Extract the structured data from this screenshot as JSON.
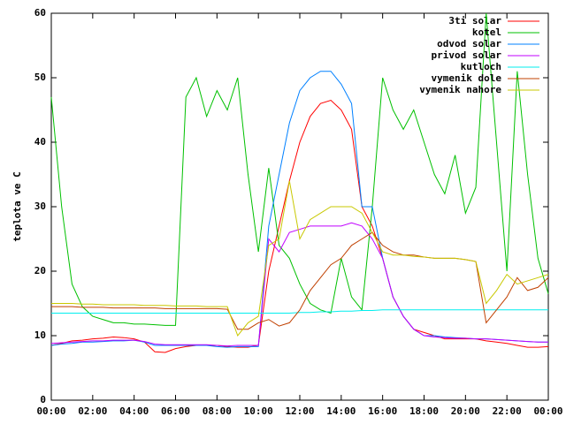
{
  "chart_data": {
    "type": "line",
    "ylabel": "teplota ve C",
    "x": [
      0,
      0.5,
      1,
      1.5,
      2,
      2.5,
      3,
      3.5,
      4,
      4.5,
      5,
      5.5,
      6,
      6.5,
      7,
      7.5,
      8,
      8.5,
      9,
      9.5,
      10,
      10.5,
      11,
      11.5,
      12,
      12.5,
      13,
      13.5,
      14,
      14.5,
      15,
      15.5,
      16,
      16.5,
      17,
      17.5,
      18,
      18.5,
      19,
      19.5,
      20,
      20.5,
      21,
      21.5,
      22,
      22.5,
      23,
      23.5,
      24
    ],
    "xlim": [
      0,
      24
    ],
    "xticks": [
      {
        "value": 0,
        "label": "00:00"
      },
      {
        "value": 2,
        "label": "02:00"
      },
      {
        "value": 4,
        "label": "04:00"
      },
      {
        "value": 6,
        "label": "06:00"
      },
      {
        "value": 8,
        "label": "08:00"
      },
      {
        "value": 10,
        "label": "10:00"
      },
      {
        "value": 12,
        "label": "12:00"
      },
      {
        "value": 14,
        "label": "14:00"
      },
      {
        "value": 16,
        "label": "16:00"
      },
      {
        "value": 18,
        "label": "18:00"
      },
      {
        "value": 20,
        "label": "20:00"
      },
      {
        "value": 22,
        "label": "22:00"
      },
      {
        "value": 24,
        "label": "00:00"
      }
    ],
    "ylim": [
      0,
      60
    ],
    "yticks": [
      0,
      10,
      20,
      30,
      40,
      50,
      60
    ],
    "legend": "top-right",
    "series": [
      {
        "name": "3ti solar",
        "color": "#ff0000",
        "values": [
          8.5,
          8.8,
          9.2,
          9.3,
          9.5,
          9.6,
          9.8,
          9.7,
          9.5,
          9,
          7.5,
          7.4,
          8,
          8.3,
          8.5,
          8.5,
          8.5,
          8.3,
          8.2,
          8.2,
          8.5,
          20,
          27,
          34,
          40,
          44,
          46,
          46.5,
          45,
          42,
          30,
          27,
          22,
          16,
          13,
          11,
          10.5,
          10,
          9.5,
          9.5,
          9.5,
          9.5,
          9.2,
          9,
          8.8,
          8.5,
          8.2,
          8.2,
          8.3
        ]
      },
      {
        "name": "kotel",
        "color": "#00c000",
        "values": [
          47,
          30,
          18,
          14.5,
          13,
          12.5,
          12,
          12,
          11.8,
          11.8,
          11.7,
          11.6,
          11.6,
          47,
          50,
          44,
          48,
          45,
          50,
          35,
          23,
          36,
          24,
          22,
          18,
          15,
          14,
          13.5,
          22,
          16,
          14,
          30,
          50,
          45,
          42,
          45,
          40,
          35,
          32,
          38,
          29,
          33,
          60,
          40,
          20,
          51,
          35,
          22,
          16.5
        ]
      },
      {
        "name": "odvod solar",
        "color": "#0080ff",
        "values": [
          8.5,
          8.7,
          8.8,
          9,
          9,
          9.1,
          9.2,
          9.2,
          9.3,
          9,
          8.5,
          8.5,
          8.5,
          8.5,
          8.5,
          8.5,
          8.3,
          8.2,
          8.3,
          8.3,
          8.3,
          27,
          35,
          43,
          48,
          50,
          51,
          51,
          49,
          46,
          30,
          30,
          22,
          16,
          13,
          11,
          10,
          10,
          9.8,
          9.7,
          9.6,
          9.5,
          9.5,
          9.4,
          9.3,
          9.2,
          9.1,
          9,
          9
        ]
      },
      {
        "name": "privod solar",
        "color": "#c000ff",
        "values": [
          8.8,
          8.9,
          9,
          9.1,
          9.2,
          9.2,
          9.3,
          9.3,
          9.3,
          9.1,
          8.7,
          8.6,
          8.6,
          8.6,
          8.6,
          8.6,
          8.5,
          8.4,
          8.5,
          8.5,
          8.5,
          25,
          23,
          26,
          26.5,
          27,
          27,
          27,
          27,
          27.5,
          27,
          25,
          22,
          16,
          13,
          11,
          10,
          9.8,
          9.7,
          9.6,
          9.6,
          9.5,
          9.5,
          9.4,
          9.3,
          9.2,
          9.1,
          9,
          9
        ]
      },
      {
        "name": "kutloch",
        "color": "#00eeee",
        "values": [
          13.5,
          13.5,
          13.5,
          13.5,
          13.5,
          13.5,
          13.5,
          13.5,
          13.5,
          13.5,
          13.5,
          13.5,
          13.5,
          13.5,
          13.5,
          13.5,
          13.5,
          13.5,
          13.5,
          13.5,
          13.5,
          13.5,
          13.5,
          13.5,
          13.6,
          13.6,
          13.7,
          13.7,
          13.8,
          13.8,
          13.9,
          13.9,
          14,
          14,
          14,
          14,
          14,
          14,
          14,
          14,
          14,
          14,
          14,
          14,
          14,
          14,
          14,
          14,
          14
        ]
      },
      {
        "name": "vymenik dole",
        "color": "#c04000",
        "values": [
          14.5,
          14.5,
          14.5,
          14.4,
          14.4,
          14.4,
          14.3,
          14.3,
          14.3,
          14.3,
          14.3,
          14.2,
          14.2,
          14.2,
          14.2,
          14.2,
          14.2,
          14.1,
          11,
          11,
          12,
          12.5,
          11.5,
          12,
          14,
          17,
          19,
          21,
          22,
          24,
          25,
          26,
          24,
          23,
          22.5,
          22.5,
          22.2,
          22,
          22,
          22,
          21.8,
          21.5,
          12,
          14,
          16,
          19,
          17,
          17.5,
          19
        ]
      },
      {
        "name": "vymenik nahore",
        "color": "#c8c800",
        "values": [
          15,
          15,
          15,
          14.9,
          14.9,
          14.8,
          14.8,
          14.8,
          14.8,
          14.7,
          14.7,
          14.7,
          14.6,
          14.6,
          14.6,
          14.5,
          14.5,
          14.5,
          10,
          12,
          13,
          24,
          25,
          34,
          25,
          28,
          29,
          30,
          30,
          30,
          29,
          26,
          23,
          22.5,
          22.5,
          22.3,
          22.2,
          22,
          22,
          22,
          21.8,
          21.5,
          15,
          17,
          19.5,
          18,
          18.5,
          19,
          19.5
        ]
      }
    ]
  }
}
